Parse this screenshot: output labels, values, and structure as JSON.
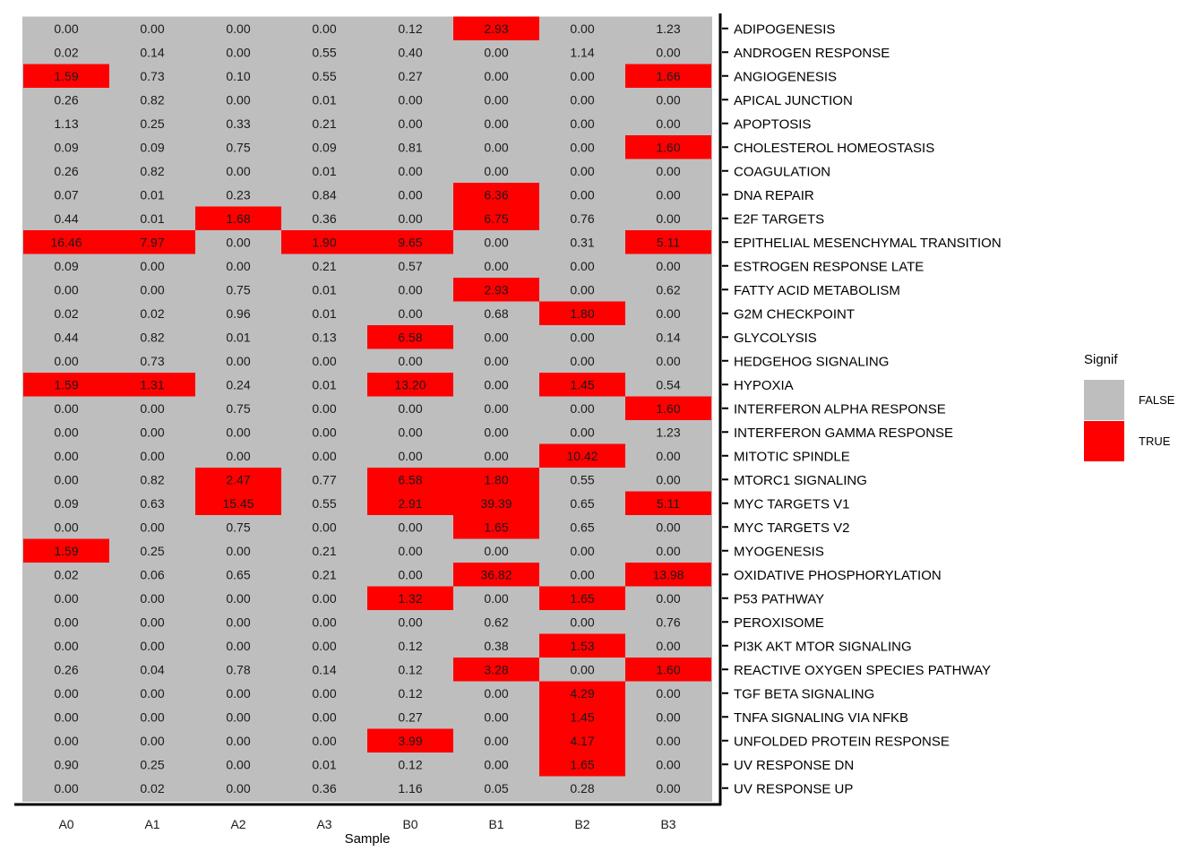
{
  "chart_data": {
    "type": "heatmap",
    "xlabel": "Sample",
    "columns": [
      "A0",
      "A1",
      "A2",
      "A3",
      "B0",
      "B1",
      "B2",
      "B3"
    ],
    "rows": [
      "ADIPOGENESIS",
      "ANDROGEN RESPONSE",
      "ANGIOGENESIS",
      "APICAL JUNCTION",
      "APOPTOSIS",
      "CHOLESTEROL HOMEOSTASIS",
      "COAGULATION",
      "DNA REPAIR",
      "E2F TARGETS",
      "EPITHELIAL MESENCHYMAL TRANSITION",
      "ESTROGEN RESPONSE LATE",
      "FATTY ACID METABOLISM",
      "G2M CHECKPOINT",
      "GLYCOLYSIS",
      "HEDGEHOG SIGNALING",
      "HYPOXIA",
      "INTERFERON ALPHA RESPONSE",
      "INTERFERON GAMMA RESPONSE",
      "MITOTIC SPINDLE",
      "MTORC1 SIGNALING",
      "MYC TARGETS V1",
      "MYC TARGETS V2",
      "MYOGENESIS",
      "OXIDATIVE PHOSPHORYLATION",
      "P53 PATHWAY",
      "PEROXISOME",
      "PI3K AKT MTOR SIGNALING",
      "REACTIVE OXYGEN SPECIES PATHWAY",
      "TGF BETA SIGNALING",
      "TNFA SIGNALING VIA NFKB",
      "UNFOLDED PROTEIN RESPONSE",
      "UV RESPONSE DN",
      "UV RESPONSE UP"
    ],
    "values": [
      [
        "0.00",
        "0.00",
        "0.00",
        "0.00",
        "0.12",
        "2.93",
        "0.00",
        "1.23"
      ],
      [
        "0.02",
        "0.14",
        "0.00",
        "0.55",
        "0.40",
        "0.00",
        "1.14",
        "0.00"
      ],
      [
        "1.59",
        "0.73",
        "0.10",
        "0.55",
        "0.27",
        "0.00",
        "0.00",
        "1.66"
      ],
      [
        "0.26",
        "0.82",
        "0.00",
        "0.01",
        "0.00",
        "0.00",
        "0.00",
        "0.00"
      ],
      [
        "1.13",
        "0.25",
        "0.33",
        "0.21",
        "0.00",
        "0.00",
        "0.00",
        "0.00"
      ],
      [
        "0.09",
        "0.09",
        "0.75",
        "0.09",
        "0.81",
        "0.00",
        "0.00",
        "1.60"
      ],
      [
        "0.26",
        "0.82",
        "0.00",
        "0.01",
        "0.00",
        "0.00",
        "0.00",
        "0.00"
      ],
      [
        "0.07",
        "0.01",
        "0.23",
        "0.84",
        "0.00",
        "6.36",
        "0.00",
        "0.00"
      ],
      [
        "0.44",
        "0.01",
        "1.68",
        "0.36",
        "0.00",
        "6.75",
        "0.76",
        "0.00"
      ],
      [
        "16.46",
        "7.97",
        "0.00",
        "1.90",
        "9.65",
        "0.00",
        "0.31",
        "5.11"
      ],
      [
        "0.09",
        "0.00",
        "0.00",
        "0.21",
        "0.57",
        "0.00",
        "0.00",
        "0.00"
      ],
      [
        "0.00",
        "0.00",
        "0.75",
        "0.01",
        "0.00",
        "2.93",
        "0.00",
        "0.62"
      ],
      [
        "0.02",
        "0.02",
        "0.96",
        "0.01",
        "0.00",
        "0.68",
        "1.80",
        "0.00"
      ],
      [
        "0.44",
        "0.82",
        "0.01",
        "0.13",
        "6.58",
        "0.00",
        "0.00",
        "0.14"
      ],
      [
        "0.00",
        "0.73",
        "0.00",
        "0.00",
        "0.00",
        "0.00",
        "0.00",
        "0.00"
      ],
      [
        "1.59",
        "1.31",
        "0.24",
        "0.01",
        "13.20",
        "0.00",
        "1.45",
        "0.54"
      ],
      [
        "0.00",
        "0.00",
        "0.75",
        "0.00",
        "0.00",
        "0.00",
        "0.00",
        "1.60"
      ],
      [
        "0.00",
        "0.00",
        "0.00",
        "0.00",
        "0.00",
        "0.00",
        "0.00",
        "1.23"
      ],
      [
        "0.00",
        "0.00",
        "0.00",
        "0.00",
        "0.00",
        "0.00",
        "10.42",
        "0.00"
      ],
      [
        "0.00",
        "0.82",
        "2.47",
        "0.77",
        "6.58",
        "1.80",
        "0.55",
        "0.00"
      ],
      [
        "0.09",
        "0.63",
        "15.45",
        "0.55",
        "2.91",
        "39.39",
        "0.65",
        "5.11"
      ],
      [
        "0.00",
        "0.00",
        "0.75",
        "0.00",
        "0.00",
        "1.65",
        "0.65",
        "0.00"
      ],
      [
        "1.59",
        "0.25",
        "0.00",
        "0.21",
        "0.00",
        "0.00",
        "0.00",
        "0.00"
      ],
      [
        "0.02",
        "0.06",
        "0.65",
        "0.21",
        "0.00",
        "36.82",
        "0.00",
        "13.98"
      ],
      [
        "0.00",
        "0.00",
        "0.00",
        "0.00",
        "1.32",
        "0.00",
        "1.65",
        "0.00"
      ],
      [
        "0.00",
        "0.00",
        "0.00",
        "0.00",
        "0.00",
        "0.62",
        "0.00",
        "0.76"
      ],
      [
        "0.00",
        "0.00",
        "0.00",
        "0.00",
        "0.12",
        "0.38",
        "1.53",
        "0.00"
      ],
      [
        "0.26",
        "0.04",
        "0.78",
        "0.14",
        "0.12",
        "3.28",
        "0.00",
        "1.60"
      ],
      [
        "0.00",
        "0.00",
        "0.00",
        "0.00",
        "0.12",
        "0.00",
        "4.29",
        "0.00"
      ],
      [
        "0.00",
        "0.00",
        "0.00",
        "0.00",
        "0.27",
        "0.00",
        "1.45",
        "0.00"
      ],
      [
        "0.00",
        "0.00",
        "0.00",
        "0.00",
        "3.99",
        "0.00",
        "4.17",
        "0.00"
      ],
      [
        "0.90",
        "0.25",
        "0.00",
        "0.01",
        "0.12",
        "0.00",
        "1.65",
        "0.00"
      ],
      [
        "0.00",
        "0.02",
        "0.00",
        "0.36",
        "1.16",
        "0.05",
        "0.28",
        "0.00"
      ]
    ],
    "signif": [
      [
        0,
        0,
        0,
        0,
        0,
        1,
        0,
        0
      ],
      [
        0,
        0,
        0,
        0,
        0,
        0,
        0,
        0
      ],
      [
        1,
        0,
        0,
        0,
        0,
        0,
        0,
        1
      ],
      [
        0,
        0,
        0,
        0,
        0,
        0,
        0,
        0
      ],
      [
        0,
        0,
        0,
        0,
        0,
        0,
        0,
        0
      ],
      [
        0,
        0,
        0,
        0,
        0,
        0,
        0,
        1
      ],
      [
        0,
        0,
        0,
        0,
        0,
        0,
        0,
        0
      ],
      [
        0,
        0,
        0,
        0,
        0,
        1,
        0,
        0
      ],
      [
        0,
        0,
        1,
        0,
        0,
        1,
        0,
        0
      ],
      [
        1,
        1,
        0,
        1,
        1,
        0,
        0,
        1
      ],
      [
        0,
        0,
        0,
        0,
        0,
        0,
        0,
        0
      ],
      [
        0,
        0,
        0,
        0,
        0,
        1,
        0,
        0
      ],
      [
        0,
        0,
        0,
        0,
        0,
        0,
        1,
        0
      ],
      [
        0,
        0,
        0,
        0,
        1,
        0,
        0,
        0
      ],
      [
        0,
        0,
        0,
        0,
        0,
        0,
        0,
        0
      ],
      [
        1,
        1,
        0,
        0,
        1,
        0,
        1,
        0
      ],
      [
        0,
        0,
        0,
        0,
        0,
        0,
        0,
        1
      ],
      [
        0,
        0,
        0,
        0,
        0,
        0,
        0,
        0
      ],
      [
        0,
        0,
        0,
        0,
        0,
        0,
        1,
        0
      ],
      [
        0,
        0,
        1,
        0,
        1,
        1,
        0,
        0
      ],
      [
        0,
        0,
        1,
        0,
        1,
        1,
        0,
        1
      ],
      [
        0,
        0,
        0,
        0,
        0,
        1,
        0,
        0
      ],
      [
        1,
        0,
        0,
        0,
        0,
        0,
        0,
        0
      ],
      [
        0,
        0,
        0,
        0,
        0,
        1,
        0,
        1
      ],
      [
        0,
        0,
        0,
        0,
        1,
        0,
        1,
        0
      ],
      [
        0,
        0,
        0,
        0,
        0,
        0,
        0,
        0
      ],
      [
        0,
        0,
        0,
        0,
        0,
        0,
        1,
        0
      ],
      [
        0,
        0,
        0,
        0,
        0,
        1,
        0,
        1
      ],
      [
        0,
        0,
        0,
        0,
        0,
        0,
        1,
        0
      ],
      [
        0,
        0,
        0,
        0,
        0,
        0,
        1,
        0
      ],
      [
        0,
        0,
        0,
        0,
        1,
        0,
        1,
        0
      ],
      [
        0,
        0,
        0,
        0,
        0,
        0,
        1,
        0
      ],
      [
        0,
        0,
        0,
        0,
        0,
        0,
        0,
        0
      ]
    ],
    "legend": {
      "title": "Signif",
      "placement": "right",
      "entries": [
        {
          "label": "FALSE",
          "color": "#bebebe"
        },
        {
          "label": "TRUE",
          "color": "#ff0000"
        }
      ]
    },
    "colors": {
      "false": "#bebebe",
      "true": "#ff0000"
    }
  }
}
